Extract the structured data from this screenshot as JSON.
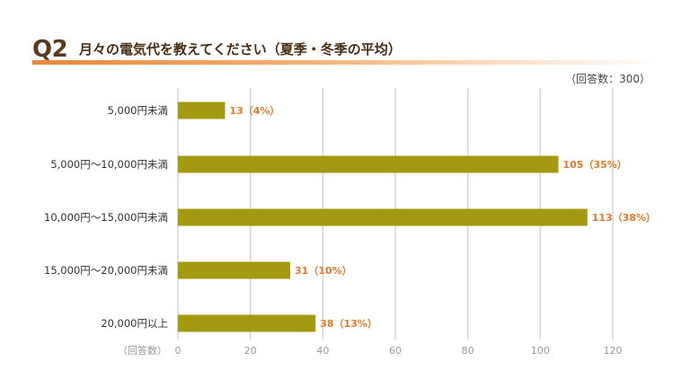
{
  "header": {
    "question_number": "Q2",
    "question_text": "月々の電気代を教えてください（夏季・冬季の平均）"
  },
  "respondents_note": "（回答数：300）",
  "chart_data": {
    "type": "bar",
    "orientation": "horizontal",
    "categories": [
      "5,000円未満",
      "5,000円〜10,000円未満",
      "10,000円〜15,000円未満",
      "15,000円〜20,000円未満",
      "20,000円以上"
    ],
    "values": [
      13,
      105,
      113,
      31,
      38
    ],
    "data_labels": [
      "13（4%）",
      "105（35%）",
      "113（38%）",
      "31（10%）",
      "38（13%）"
    ],
    "xlabel": "（回答数）",
    "xlim": [
      0,
      120
    ],
    "xticks": [
      0,
      20,
      40,
      60,
      80,
      100,
      120
    ],
    "grid": true,
    "colors": {
      "bar": "#a39a12",
      "label": "#e07a2a",
      "grid": "#d4d4d4",
      "tick": "#999999"
    }
  }
}
